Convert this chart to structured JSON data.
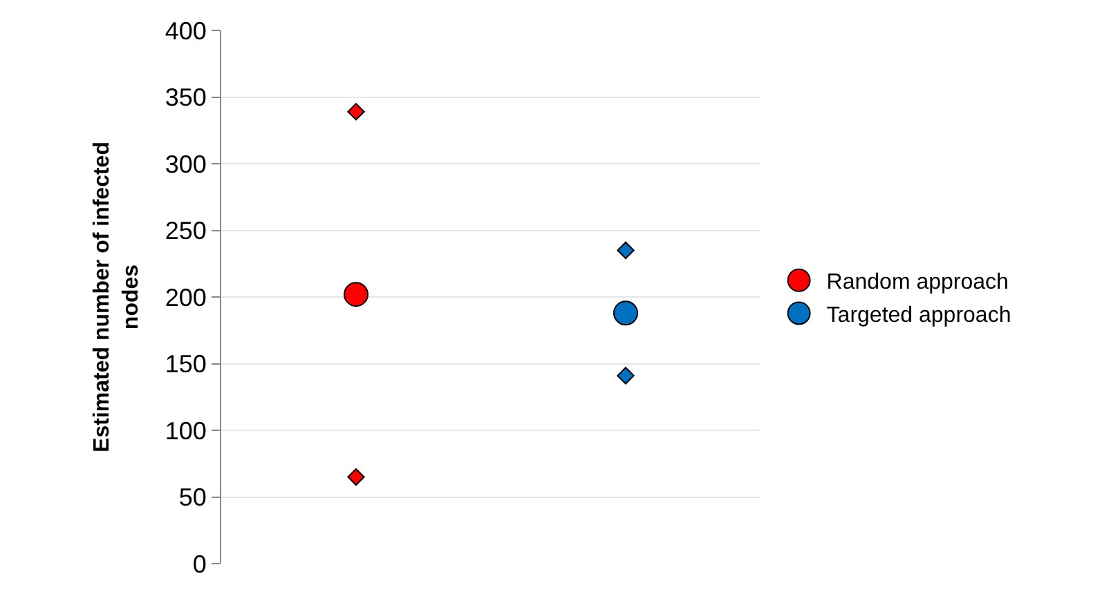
{
  "chart_data": {
    "type": "scatter",
    "ylabel": "Estimated number of infected nodes",
    "categories": [
      null,
      null
    ],
    "ylim": [
      0,
      400
    ],
    "yticks": [
      0,
      50,
      100,
      150,
      200,
      250,
      300,
      350,
      400
    ],
    "grid": "y",
    "legend": "right",
    "series": [
      {
        "name": "Random approach",
        "color": "#ff0000",
        "marker": "circle",
        "values": [
          202,
          null
        ]
      },
      {
        "name": "Targeted approach",
        "color": "#0070c0",
        "marker": "circle",
        "values": [
          null,
          188
        ]
      },
      {
        "colors": [
          "#ff0000",
          "#0070c0"
        ],
        "marker": "diamond",
        "values": [
          339,
          235
        ]
      },
      {
        "colors": [
          "#ff0000",
          "#0070c0"
        ],
        "marker": "diamond",
        "values": [
          65,
          141
        ]
      }
    ]
  }
}
